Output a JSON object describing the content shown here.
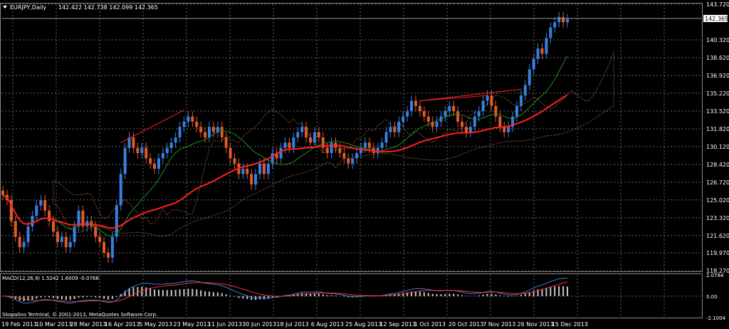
{
  "header": {
    "symbol": "EURJPY,Daily",
    "ohlc": "142.422 142.738 142.099 142.365"
  },
  "macd_header": "MACD(12,26,9) 1.5242 1.6009 -0.0768",
  "copyright": "Skopalino Terminal, © 2001-2013, MetaQuotes Software Corp.",
  "colors": {
    "bull": "#3a7fe0",
    "bear": "#e05a2a",
    "ma_fast": "#1f8f1f",
    "ma_slow": "#ff2020",
    "cloud": "#e08a50",
    "trend": "#ff2020",
    "grid": "#6a6a6a",
    "macd_line": "#3a7fe0",
    "signal_line": "#ff3030",
    "hist": "#c8c8c8"
  },
  "chart_data": {
    "type": "candlestick",
    "symbol": "EURJPY",
    "timeframe": "Daily",
    "current_price": 142.365,
    "last_bar": {
      "open": 142.422,
      "high": 142.738,
      "low": 142.099,
      "close": 142.365
    },
    "price_ticks": [
      143.72,
      142.365,
      140.32,
      138.62,
      136.92,
      135.22,
      133.52,
      131.82,
      130.12,
      128.42,
      126.72,
      125.02,
      123.32,
      121.62,
      119.97,
      118.27
    ],
    "ylim": [
      118.27,
      143.72
    ],
    "x_ticks": [
      "19 Feb 2013",
      "10 Mar 2013",
      "28 Mar 2013",
      "16 Apr 2013",
      "5 May 2013",
      "23 May 2013",
      "11 Jun 2013",
      "30 Jun 2013",
      "18 Jul 2013",
      "6 Aug 2013",
      "25 Aug 2013",
      "12 Sep 2013",
      "1 Oct 2013",
      "20 Oct 2013",
      "7 Nov 2013",
      "26 Nov 2013",
      "15 Dec 2013"
    ],
    "closes_approx": [
      125.5,
      125.0,
      123.0,
      121.5,
      120.5,
      121.0,
      122.5,
      123.5,
      124.5,
      125.0,
      124.0,
      123.0,
      122.0,
      121.0,
      121.5,
      120.5,
      121.0,
      122.5,
      124.0,
      122.5,
      123.0,
      122.5,
      121.5,
      121.0,
      120.0,
      119.5,
      121.5,
      124.5,
      127.5,
      130.0,
      131.0,
      130.0,
      129.5,
      130.0,
      129.0,
      128.5,
      128.0,
      129.0,
      129.5,
      130.0,
      130.5,
      131.0,
      132.0,
      132.5,
      133.0,
      132.5,
      132.0,
      131.5,
      131.0,
      132.0,
      131.5,
      132.0,
      131.0,
      130.0,
      129.0,
      128.5,
      127.5,
      128.0,
      127.5,
      126.5,
      127.5,
      128.5,
      127.5,
      128.5,
      129.5,
      129.0,
      130.0,
      130.5,
      130.0,
      131.0,
      131.5,
      132.0,
      131.0,
      130.5,
      131.5,
      131.0,
      130.0,
      129.5,
      130.5,
      130.0,
      129.5,
      129.0,
      128.5,
      129.0,
      129.5,
      130.0,
      130.5,
      130.0,
      129.5,
      130.0,
      130.5,
      131.5,
      132.0,
      131.5,
      132.5,
      133.0,
      133.5,
      134.5,
      134.0,
      133.5,
      133.0,
      132.5,
      132.0,
      132.5,
      133.0,
      133.5,
      134.0,
      133.5,
      132.5,
      132.0,
      131.5,
      132.0,
      133.0,
      133.5,
      134.5,
      135.0,
      134.0,
      133.0,
      132.0,
      131.5,
      132.0,
      133.0,
      134.0,
      135.0,
      136.0,
      137.5,
      138.5,
      139.5,
      139.0,
      140.5,
      141.5,
      142.0,
      142.5,
      142.0,
      142.3
    ],
    "indicators": [
      {
        "name": "MA fast (green)"
      },
      {
        "name": "MA slow (red)"
      },
      {
        "name": "Ichimoku cloud (orange dotted)"
      }
    ],
    "macd": {
      "name": "MACD(12,26,9)",
      "macd": 1.5242,
      "signal": 1.6009,
      "histogram": -0.0768,
      "ticks": [
        "2.0784",
        "0.00",
        "-2.1004"
      ],
      "ylim": [
        -2.1004,
        2.0784
      ]
    }
  }
}
